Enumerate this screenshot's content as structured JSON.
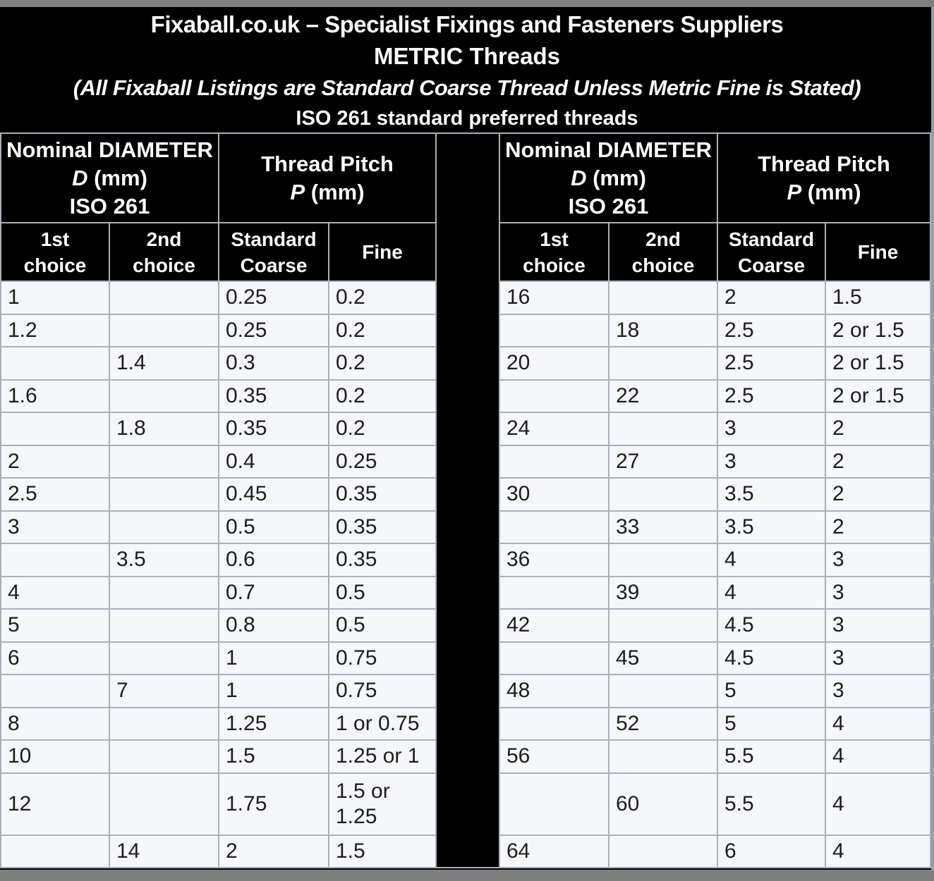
{
  "title": {
    "line1": "Fixaball.co.uk – Specialist Fixings and Fasteners Suppliers",
    "line2": "METRIC Threads",
    "line3": "(All Fixaball Listings are Standard Coarse Thread Unless Metric Fine is Stated)",
    "line4": "ISO 261 standard preferred threads"
  },
  "table": {
    "diameter_header": {
      "line1": "Nominal DIAMETER",
      "symbol": "D",
      "unit": " (mm)",
      "line3": "ISO 261"
    },
    "pitch_header": {
      "line1": "Thread Pitch",
      "symbol": "P",
      "unit": " (mm)"
    },
    "sub_headers": [
      "1st choice",
      "2nd choice",
      "Standard Coarse",
      "Fine"
    ],
    "left_rows": [
      [
        "1",
        "",
        "0.25",
        "0.2"
      ],
      [
        "1.2",
        "",
        "0.25",
        "0.2"
      ],
      [
        "",
        "1.4",
        "0.3",
        "0.2"
      ],
      [
        "1.6",
        "",
        "0.35",
        "0.2"
      ],
      [
        "",
        "1.8",
        "0.35",
        "0.2"
      ],
      [
        "2",
        "",
        "0.4",
        "0.25"
      ],
      [
        "2.5",
        "",
        "0.45",
        "0.35"
      ],
      [
        "3",
        "",
        "0.5",
        "0.35"
      ],
      [
        "",
        "3.5",
        "0.6",
        "0.35"
      ],
      [
        "4",
        "",
        "0.7",
        "0.5"
      ],
      [
        "5",
        "",
        "0.8",
        "0.5"
      ],
      [
        "6",
        "",
        "1",
        "0.75"
      ],
      [
        "",
        "7",
        "1",
        "0.75"
      ],
      [
        "8",
        "",
        "1.25",
        "1 or 0.75"
      ],
      [
        "10",
        "",
        "1.5",
        "1.25 or 1"
      ],
      [
        "12",
        "",
        "1.75",
        "1.5 or 1.25"
      ],
      [
        "",
        "14",
        "2",
        "1.5"
      ]
    ],
    "right_rows": [
      [
        "16",
        "",
        "2",
        "1.5"
      ],
      [
        "",
        "18",
        "2.5",
        "2 or 1.5"
      ],
      [
        "20",
        "",
        "2.5",
        "2 or 1.5"
      ],
      [
        "",
        "22",
        "2.5",
        "2 or 1.5"
      ],
      [
        "24",
        "",
        "3",
        "2"
      ],
      [
        "",
        "27",
        "3",
        "2"
      ],
      [
        "30",
        "",
        "3.5",
        "2"
      ],
      [
        "",
        "33",
        "3.5",
        "2"
      ],
      [
        "36",
        "",
        "4",
        "3"
      ],
      [
        "",
        "39",
        "4",
        "3"
      ],
      [
        "42",
        "",
        "4.5",
        "3"
      ],
      [
        "",
        "45",
        "4.5",
        "3"
      ],
      [
        "48",
        "",
        "5",
        "3"
      ],
      [
        "",
        "52",
        "5",
        "4"
      ],
      [
        "56",
        "",
        "5.5",
        "4"
      ],
      [
        "",
        "60",
        "5.5",
        "4"
      ],
      [
        "64",
        "",
        "6",
        "4"
      ]
    ]
  },
  "colors": {
    "frame_gray": "#7f7f7f",
    "header_bg": "#000000",
    "cell_bg": "#f5f7fa",
    "grid_border": "#a9b0bb",
    "header_text": "#ffffff",
    "cell_text": "#1c1c1c"
  }
}
